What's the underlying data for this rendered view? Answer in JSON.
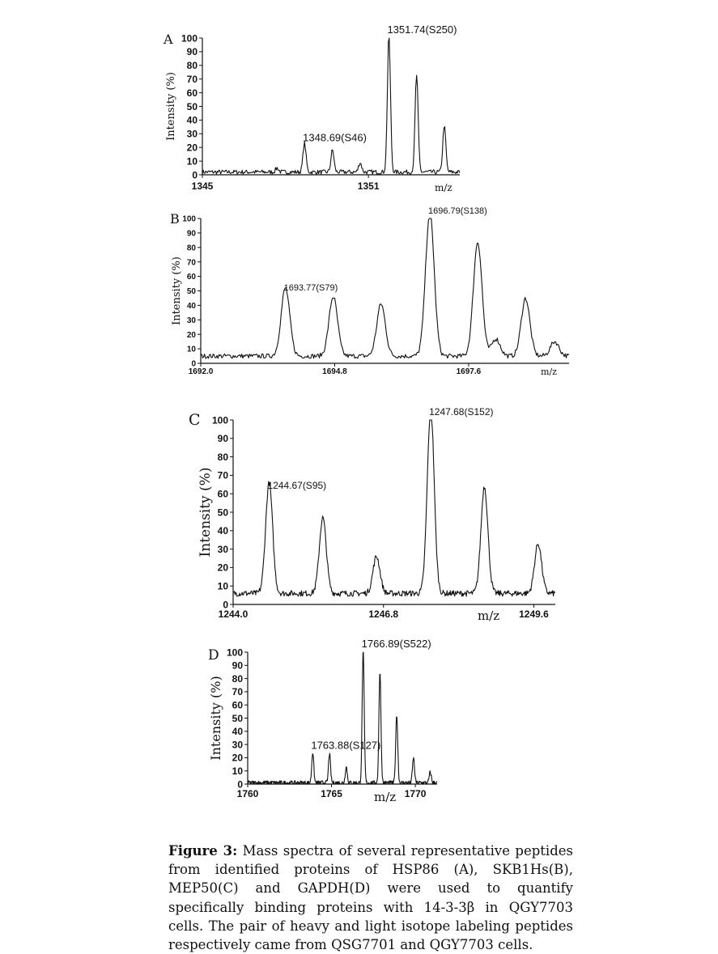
{
  "chart_data": [
    {
      "type": "line",
      "panel": "A",
      "ylabel": "Intensity (%)",
      "xunit": "m/z",
      "yticks": [
        "0",
        "10",
        "20",
        "30",
        "40",
        "50",
        "60",
        "70",
        "80",
        "90",
        "100"
      ],
      "xticks": [
        "1345",
        "1351"
      ],
      "xlim": [
        1345,
        1354.3
      ],
      "ylim": [
        0,
        100
      ],
      "peak_labels": [
        {
          "text": "1348.69(S46)",
          "x": 1348.69,
          "y": 21
        },
        {
          "text": "1351.74(S250)",
          "x": 1351.74,
          "y": 100
        }
      ],
      "series": [
        {
          "peaks": [
            [
              1347.7,
              3
            ],
            [
              1348.69,
              21
            ],
            [
              1349.7,
              16
            ],
            [
              1350.7,
              7
            ],
            [
              1351.74,
              100
            ],
            [
              1352.74,
              71
            ],
            [
              1353.74,
              34
            ]
          ],
          "baseline": 2,
          "width": 0.055
        }
      ]
    },
    {
      "type": "line",
      "panel": "B",
      "ylabel": "Intensity (%)",
      "xunit": "m/z",
      "yticks": [
        "0",
        "10",
        "20",
        "30",
        "40",
        "50",
        "60",
        "70",
        "80",
        "90",
        "100"
      ],
      "xticks": [
        "1692.0",
        "1694.8",
        "1697.6"
      ],
      "xlim": [
        1692.0,
        1699.7
      ],
      "ylim": [
        0,
        100
      ],
      "peak_labels": [
        {
          "text": "1693.77(S79)",
          "x": 1693.77,
          "y": 47
        },
        {
          "text": "1696.79(S138)",
          "x": 1696.79,
          "y": 100
        }
      ],
      "series": [
        {
          "peaks": [
            [
              1693.77,
              47
            ],
            [
              1694.77,
              41
            ],
            [
              1695.77,
              36
            ],
            [
              1696.79,
              100
            ],
            [
              1697.79,
              79
            ],
            [
              1698.79,
              40
            ],
            [
              1698.17,
              12
            ],
            [
              1699.4,
              10
            ]
          ],
          "baseline": 5,
          "width": 0.09
        }
      ]
    },
    {
      "type": "line",
      "panel": "C",
      "ylabel": "Intensity (%)",
      "xunit": "m/z",
      "yticks": [
        "0",
        "10",
        "20",
        "30",
        "40",
        "50",
        "60",
        "70",
        "80",
        "90",
        "100"
      ],
      "xticks": [
        "1244.0",
        "1246.8",
        "1249.6"
      ],
      "xlim": [
        1244.0,
        1250.0
      ],
      "ylim": [
        0,
        100
      ],
      "peak_labels": [
        {
          "text": "1244.67(S95)",
          "x": 1244.67,
          "y": 60
        },
        {
          "text": "1247.68(S152)",
          "x": 1247.68,
          "y": 100
        }
      ],
      "series": [
        {
          "peaks": [
            [
              1244.67,
              60
            ],
            [
              1245.67,
              41
            ],
            [
              1246.67,
              20
            ],
            [
              1247.68,
              100
            ],
            [
              1248.68,
              58
            ],
            [
              1249.68,
              27
            ]
          ],
          "baseline": 6,
          "width": 0.065
        }
      ]
    },
    {
      "type": "line",
      "panel": "D",
      "ylabel": "Intensity (%)",
      "xunit": "m/z",
      "yticks": [
        "0",
        "10",
        "20",
        "30",
        "40",
        "50",
        "60",
        "70",
        "80",
        "90",
        "100"
      ],
      "xticks": [
        "1760",
        "1765",
        "1770"
      ],
      "xlim": [
        1760,
        1771.3
      ],
      "ylim": [
        0,
        100
      ],
      "peak_labels": [
        {
          "text": "1763.88(S127)",
          "x": 1763.88,
          "y": 23
        },
        {
          "text": "1766.89(S522)",
          "x": 1766.89,
          "y": 100
        }
      ],
      "series": [
        {
          "peaks": [
            [
              1763.88,
              23
            ],
            [
              1764.88,
              22
            ],
            [
              1765.88,
              12
            ],
            [
              1766.89,
              100
            ],
            [
              1767.89,
              85
            ],
            [
              1768.89,
              52
            ],
            [
              1769.89,
              19
            ],
            [
              1770.89,
              8
            ]
          ],
          "baseline": 1,
          "width": 0.06
        }
      ]
    }
  ],
  "caption": {
    "label": "Figure 3:",
    "text": " Mass spectra of several representative peptides from identified proteins of HSP86 (A), SKB1Hs(B), MEP50(C) and GAPDH(D) were used to quantify specifically binding proteins with 14-3-3β in QGY7703 cells. The pair of heavy and light isotope labeling peptides respectively came from QSG7701 and QGY7703 cells."
  }
}
